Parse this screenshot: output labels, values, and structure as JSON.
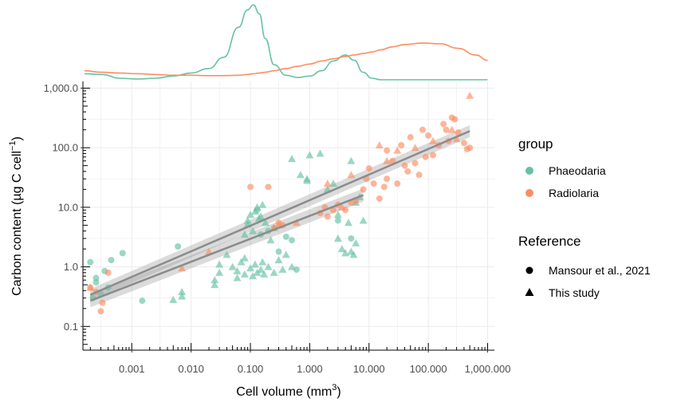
{
  "chart_data": {
    "type": "scatter",
    "xlabel": "Cell volume (mm",
    "xlabel_sup": "3",
    "xlabel_end": ")",
    "ylabel": "Carbon content (µg C cell",
    "ylabel_sup": "−1",
    "ylabel_end": ")",
    "x_scale": "log10",
    "y_scale": "log10",
    "xlim": [
      0.00015,
      1300
    ],
    "ylim": [
      0.04,
      1300
    ],
    "x_ticks": [
      {
        "value": 0.001,
        "label": "0.001"
      },
      {
        "value": 0.01,
        "label": "0.010"
      },
      {
        "value": 0.1,
        "label": "0.100"
      },
      {
        "value": 1,
        "label": "1.000"
      },
      {
        "value": 10,
        "label": "10.000"
      },
      {
        "value": 100,
        "label": "100.000"
      },
      {
        "value": 1000,
        "label": "1,000.000"
      }
    ],
    "y_ticks": [
      {
        "value": 0.1,
        "label": "0.1"
      },
      {
        "value": 1,
        "label": "1.0"
      },
      {
        "value": 10,
        "label": "10.0"
      },
      {
        "value": 100,
        "label": "100.0"
      },
      {
        "value": 1000,
        "label": "1,000.0"
      }
    ],
    "grid": true,
    "legend_position": "right",
    "legend": {
      "group_title": "group",
      "groups": [
        {
          "name": "Phaeodaria",
          "color": "#66C2A5"
        },
        {
          "name": "Radiolaria",
          "color": "#FC8D62"
        }
      ],
      "reference_title": "Reference",
      "references": [
        {
          "name": "Mansour et al., 2021",
          "shape": "circle"
        },
        {
          "name": "This study",
          "shape": "triangle"
        }
      ]
    },
    "regression_lines": [
      {
        "x": [
          0.0002,
          500
        ],
        "y": [
          0.34,
          190
        ],
        "color": "#8c8c8c",
        "band_halfwidth_log10": 0.1
      },
      {
        "x": [
          0.0002,
          8
        ],
        "y": [
          0.27,
          16
        ],
        "color": "#8c8c8c",
        "band_halfwidth_log10": 0.11
      }
    ],
    "density_x_log10": [
      -3.8,
      -3.5,
      -3.2,
      -2.9,
      -2.6,
      -2.3,
      -2.0,
      -1.7,
      -1.45,
      -1.2,
      -1.05,
      -0.95,
      -0.85,
      -0.75,
      -0.6,
      -0.4,
      -0.2,
      0.0,
      0.2,
      0.4,
      0.6,
      0.75,
      0.9,
      1.05,
      1.2,
      1.4,
      1.6,
      1.9,
      2.2,
      2.5,
      2.8,
      3.0
    ],
    "series": [
      {
        "name": "Phaeodaria",
        "color": "#66C2A5",
        "density": [
          0.08,
          0.07,
          0.02,
          0.01,
          0.02,
          0.05,
          0.09,
          0.15,
          0.3,
          0.7,
          0.93,
          1.0,
          0.88,
          0.55,
          0.2,
          0.06,
          0.03,
          0.05,
          0.12,
          0.25,
          0.33,
          0.26,
          0.1,
          0.02,
          0.0,
          0.0,
          0.0,
          0.0,
          0.0,
          0.0,
          0.0,
          0.0
        ],
        "mansour_points": [
          [
            0.0002,
            1.2
          ],
          [
            0.00022,
            0.3
          ],
          [
            0.00025,
            0.55
          ],
          [
            0.00025,
            0.65
          ],
          [
            0.0003,
            0.35
          ],
          [
            0.00035,
            0.85
          ],
          [
            0.0004,
            0.45
          ],
          [
            0.00045,
            1.3
          ],
          [
            0.0007,
            1.7
          ],
          [
            0.0015,
            0.27
          ],
          [
            0.006,
            2.2
          ],
          [
            0.13,
            9.0
          ],
          [
            0.15,
            3.5
          ],
          [
            0.2,
            4.0
          ],
          [
            0.3,
            1.8
          ],
          [
            0.4,
            3.2
          ],
          [
            0.5,
            2.8
          ],
          [
            0.6,
            0.9
          ],
          [
            3,
            6.0
          ],
          [
            5,
            3.0
          ]
        ],
        "this_study_points": [
          [
            0.005,
            0.28
          ],
          [
            0.007,
            0.32
          ],
          [
            0.007,
            0.38
          ],
          [
            0.025,
            0.5
          ],
          [
            0.025,
            0.6
          ],
          [
            0.03,
            0.8
          ],
          [
            0.03,
            1.1
          ],
          [
            0.04,
            1.6
          ],
          [
            0.05,
            1.0
          ],
          [
            0.06,
            0.85
          ],
          [
            0.06,
            0.65
          ],
          [
            0.07,
            1.2
          ],
          [
            0.08,
            0.75
          ],
          [
            0.08,
            1.4
          ],
          [
            0.08,
            3.5
          ],
          [
            0.09,
            5.2
          ],
          [
            0.09,
            6.0
          ],
          [
            0.1,
            0.95
          ],
          [
            0.1,
            7.5
          ],
          [
            0.11,
            0.7
          ],
          [
            0.11,
            4.0
          ],
          [
            0.12,
            1.1
          ],
          [
            0.12,
            8.5
          ],
          [
            0.13,
            0.8
          ],
          [
            0.13,
            10.0
          ],
          [
            0.14,
            6.5
          ],
          [
            0.15,
            0.9
          ],
          [
            0.15,
            7.0
          ],
          [
            0.16,
            1.2
          ],
          [
            0.16,
            11.0
          ],
          [
            0.17,
            0.75
          ],
          [
            0.18,
            5.5
          ],
          [
            0.2,
            1.0
          ],
          [
            0.22,
            2.8
          ],
          [
            0.25,
            0.8
          ],
          [
            0.25,
            4.5
          ],
          [
            0.3,
            1.3
          ],
          [
            0.35,
            0.9
          ],
          [
            0.4,
            1.6
          ],
          [
            0.5,
            1.0
          ],
          [
            0.5,
            65.0
          ],
          [
            0.7,
            35.0
          ],
          [
            0.9,
            30.0
          ],
          [
            0.9,
            28.0
          ],
          [
            1.0,
            75.0
          ],
          [
            1.5,
            80.0
          ],
          [
            2.0,
            20.0
          ],
          [
            2.5,
            25.0
          ],
          [
            3.0,
            7.5
          ],
          [
            3.0,
            3.0
          ],
          [
            3.5,
            2.0
          ],
          [
            4.0,
            1.7
          ],
          [
            4.5,
            5.5
          ],
          [
            5.0,
            60.0
          ],
          [
            5.0,
            1.8
          ],
          [
            5.5,
            1.6
          ],
          [
            6.0,
            2.5
          ],
          [
            6.0,
            12.0
          ],
          [
            7.0,
            15.0
          ],
          [
            8.0,
            6.0
          ]
        ]
      },
      {
        "name": "Radiolaria",
        "color": "#FC8D62",
        "density": [
          0.12,
          0.1,
          0.09,
          0.08,
          0.07,
          0.06,
          0.06,
          0.055,
          0.055,
          0.06,
          0.07,
          0.08,
          0.09,
          0.1,
          0.12,
          0.15,
          0.18,
          0.21,
          0.25,
          0.28,
          0.31,
          0.33,
          0.35,
          0.37,
          0.4,
          0.44,
          0.47,
          0.49,
          0.48,
          0.42,
          0.33,
          0.26
        ],
        "mansour_points": [
          [
            0.0002,
            0.45
          ],
          [
            0.00025,
            0.38
          ],
          [
            0.0003,
            0.18
          ],
          [
            0.00032,
            0.25
          ],
          [
            0.0004,
            0.8
          ],
          [
            0.1,
            22.0
          ],
          [
            0.2,
            22.0
          ],
          [
            0.25,
            4.5
          ],
          [
            0.3,
            5.5
          ],
          [
            0.35,
            5.0
          ],
          [
            1.5,
            8.0
          ],
          [
            1.8,
            10.0
          ],
          [
            2.0,
            7.0
          ],
          [
            2.5,
            9.0
          ],
          [
            3.0,
            11.0
          ],
          [
            4.0,
            9.0
          ],
          [
            5.0,
            12.0
          ],
          [
            6.0,
            13.0
          ],
          [
            8.0,
            20.0
          ],
          [
            9.0,
            30.0
          ],
          [
            10.0,
            45.0
          ],
          [
            12.0,
            25.0
          ],
          [
            15.0,
            14.0
          ],
          [
            18.0,
            22.0
          ],
          [
            20.0,
            30.0
          ],
          [
            20.0,
            90.0
          ],
          [
            25.0,
            60.0
          ],
          [
            30.0,
            25.0
          ],
          [
            35.0,
            110.0
          ],
          [
            40.0,
            50.0
          ],
          [
            45.0,
            40.0
          ],
          [
            50.0,
            150.0
          ],
          [
            60.0,
            55.0
          ],
          [
            70.0,
            35.0
          ],
          [
            80.0,
            200.0
          ],
          [
            90.0,
            70.0
          ],
          [
            100.0,
            160.0
          ],
          [
            120.0,
            75.0
          ],
          [
            150.0,
            110.0
          ],
          [
            180.0,
            250.0
          ],
          [
            200.0,
            200.0
          ],
          [
            220.0,
            130.0
          ],
          [
            250.0,
            320.0
          ],
          [
            280.0,
            300.0
          ],
          [
            320.0,
            180.0
          ],
          [
            400.0,
            120.0
          ],
          [
            450.0,
            95.0
          ],
          [
            500.0,
            100.0
          ]
        ],
        "this_study_points": [
          [
            0.0002,
            0.45
          ],
          [
            0.007,
            0.95
          ],
          [
            0.02,
            1.8
          ],
          [
            0.3,
            5.0
          ],
          [
            0.6,
            5.5
          ],
          [
            2.0,
            25.0
          ],
          [
            3.5,
            10.0
          ],
          [
            5.0,
            35.0
          ],
          [
            15.0,
            110.0
          ],
          [
            20.0,
            60.0
          ],
          [
            30.0,
            90.0
          ],
          [
            60.0,
            100.0
          ],
          [
            120.0,
            130.0
          ],
          [
            250.0,
            200.0
          ],
          [
            300.0,
            140.0
          ],
          [
            500.0,
            750.0
          ]
        ]
      }
    ]
  }
}
